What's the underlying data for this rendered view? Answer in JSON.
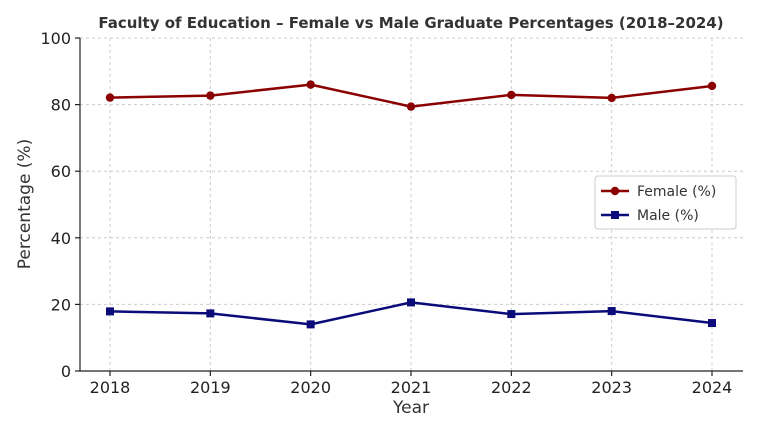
{
  "chart_data": {
    "type": "line",
    "title": "Faculty of Education – Female vs Male Graduate Percentages (2018–2024)",
    "xlabel": "Year",
    "ylabel": "Percentage (%)",
    "categories": [
      "2018",
      "2019",
      "2020",
      "2021",
      "2022",
      "2023",
      "2024"
    ],
    "ylim": [
      0,
      100
    ],
    "yticks": [
      0,
      20,
      40,
      60,
      80,
      100
    ],
    "grid": true,
    "legend_position": "right",
    "series": [
      {
        "name": "Female (%)",
        "color": "#8b0000",
        "marker": "circle",
        "values": [
          82.1,
          82.7,
          86.0,
          79.4,
          82.9,
          82.0,
          85.6
        ]
      },
      {
        "name": "Male (%)",
        "color": "#0b0b7a",
        "marker": "square",
        "values": [
          17.9,
          17.3,
          14.0,
          20.6,
          17.1,
          18.0,
          14.4
        ]
      }
    ]
  }
}
